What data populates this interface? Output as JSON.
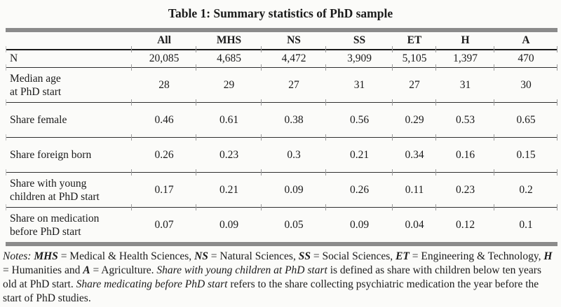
{
  "title": "Table 1: Summary statistics of PhD sample",
  "table": {
    "header": [
      "",
      "All",
      "MHS",
      "NS",
      "SS",
      "ET",
      "H",
      "A"
    ],
    "rows": [
      {
        "label": [
          "N"
        ],
        "values": [
          "20,085",
          "4,685",
          "4,472",
          "3,909",
          "5,105",
          "1,397",
          "470"
        ]
      },
      {
        "label": [
          "Median age",
          "at PhD start"
        ],
        "values": [
          "28",
          "29",
          "27",
          "31",
          "27",
          "31",
          "30"
        ]
      },
      {
        "label": [
          "Share female"
        ],
        "values": [
          "0.46",
          "0.61",
          "0.38",
          "0.56",
          "0.29",
          "0.53",
          "0.65"
        ]
      },
      {
        "label": [
          "Share foreign born"
        ],
        "values": [
          "0.26",
          "0.23",
          "0.3",
          "0.21",
          "0.34",
          "0.16",
          "0.15"
        ]
      },
      {
        "label": [
          "Share with young",
          "children at PhD start"
        ],
        "values": [
          "0.17",
          "0.21",
          "0.09",
          "0.26",
          "0.11",
          "0.23",
          "0.2"
        ]
      },
      {
        "label": [
          "Share on medication",
          "before PhD start"
        ],
        "values": [
          "0.07",
          "0.09",
          "0.05",
          "0.09",
          "0.04",
          "0.12",
          "0.1"
        ]
      }
    ]
  },
  "notes_segments": [
    {
      "text": "Notes:",
      "style": "italic"
    },
    {
      "text": " ",
      "style": "normal"
    },
    {
      "text": "MHS",
      "style": "bold-italic"
    },
    {
      "text": " = Medical & Health Sciences, ",
      "style": "normal"
    },
    {
      "text": "NS",
      "style": "bold-italic"
    },
    {
      "text": " = Natural Sciences, ",
      "style": "normal"
    },
    {
      "text": "SS",
      "style": "bold-italic"
    },
    {
      "text": " = Social Sciences, ",
      "style": "normal"
    },
    {
      "text": "ET",
      "style": "bold-italic"
    },
    {
      "text": " = Engineering & Technology, ",
      "style": "normal"
    },
    {
      "text": "H",
      "style": "bold-italic"
    },
    {
      "text": " = Humanities and ",
      "style": "normal"
    },
    {
      "text": "A",
      "style": "bold-italic"
    },
    {
      "text": " = Agriculture. ",
      "style": "normal"
    },
    {
      "text": "Share with young children at PhD start",
      "style": "italic"
    },
    {
      "text": " is defined as share with children below ten years old at PhD start. ",
      "style": "normal"
    },
    {
      "text": "Share medicating before PhD start",
      "style": "italic"
    },
    {
      "text": " refers to the share collecting psychiatric medication the year before the start of PhD studies.",
      "style": "normal"
    }
  ],
  "colors": {
    "paper_background": "#fbfbf9",
    "text": "#1b1b1b",
    "thick_bar_gray": "#8b8b8b",
    "header_rule": "#1a1a1a",
    "row_rule": "#2e2e2e",
    "tick_gray": "#9b9b9b"
  }
}
